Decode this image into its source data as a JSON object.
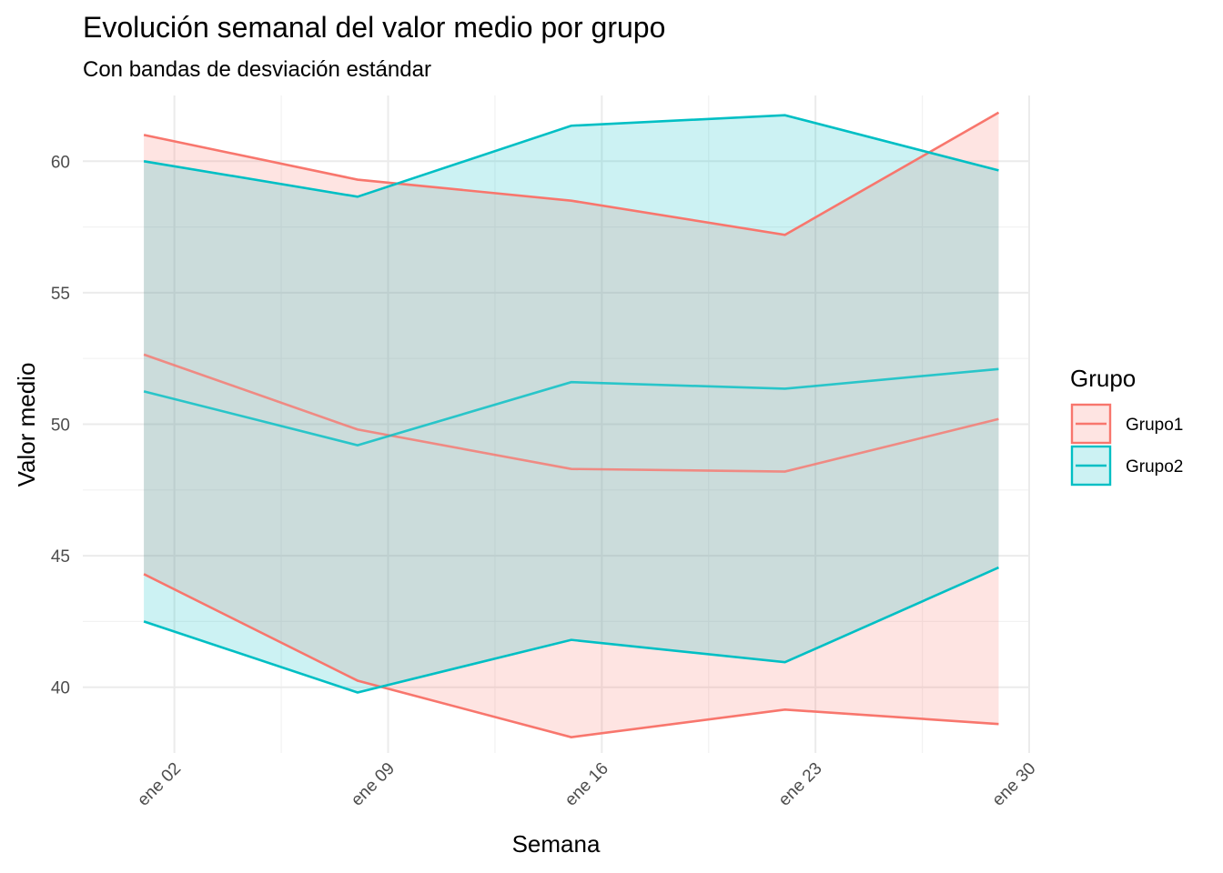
{
  "chart_data": {
    "type": "line",
    "title": "Evolución semanal del valor medio por grupo",
    "subtitle": "Con bandas de desviación estándar",
    "xlabel": "Semana",
    "ylabel": "Valor medio",
    "x": [
      "2024-01-01",
      "2024-01-08",
      "2024-01-15",
      "2024-01-22",
      "2024-01-29"
    ],
    "x_ticks": [
      {
        "date": "2024-01-02",
        "label": "ene 02"
      },
      {
        "date": "2024-01-09",
        "label": "ene 09"
      },
      {
        "date": "2024-01-16",
        "label": "ene 16"
      },
      {
        "date": "2024-01-23",
        "label": "ene 23"
      },
      {
        "date": "2024-01-30",
        "label": "ene 30"
      }
    ],
    "xlim": [
      "2023-12-30",
      "2024-01-30"
    ],
    "ylim": [
      37.5,
      62.5
    ],
    "y_ticks": [
      40,
      45,
      50,
      55,
      60
    ],
    "grid": true,
    "legend": {
      "title": "Grupo",
      "position": "right"
    },
    "series": [
      {
        "name": "Grupo1",
        "color": "#F8766D",
        "mean": [
          52.65,
          49.8,
          48.3,
          48.2,
          50.2
        ],
        "upper": [
          61.0,
          59.3,
          58.5,
          57.2,
          61.85
        ],
        "lower": [
          44.3,
          40.25,
          38.1,
          39.15,
          38.6
        ]
      },
      {
        "name": "Grupo2",
        "color": "#00BFC4",
        "mean": [
          51.25,
          49.2,
          51.6,
          51.35,
          52.1
        ],
        "upper": [
          60.0,
          58.65,
          61.35,
          61.75,
          59.65
        ],
        "lower": [
          42.5,
          39.8,
          41.8,
          40.95,
          44.55
        ]
      }
    ]
  }
}
